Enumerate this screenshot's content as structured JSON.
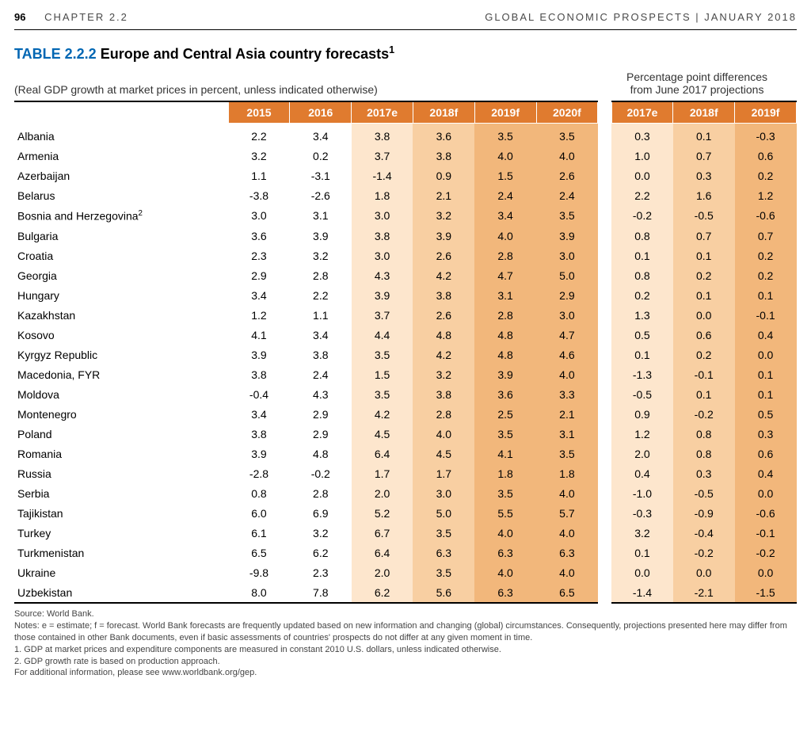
{
  "header": {
    "page_number": "96",
    "chapter": "CHAPTER 2.2",
    "doc_title": "GLOBAL ECONOMIC PROSPECTS | JANUARY 2018"
  },
  "title": {
    "prefix": "TABLE 2.2.2",
    "text": "Europe and Central Asia country forecasts",
    "sup": "1"
  },
  "subtitle": "(Real GDP growth at market prices in percent, unless indicated otherwise)",
  "diff_title_l1": "Percentage point differences",
  "diff_title_l2": "from June 2017 projections",
  "columns_main": [
    "2015",
    "2016",
    "2017e",
    "2018f",
    "2019f",
    "2020f"
  ],
  "columns_diff": [
    "2017e",
    "2018f",
    "2019f"
  ],
  "col_shade_main": [
    "",
    "",
    "shade-light",
    "shade-mid",
    "shade-dark",
    "shade-dark"
  ],
  "col_shade_diff": [
    "shade-light",
    "shade-mid",
    "shade-dark"
  ],
  "rows": [
    {
      "c": "Albania",
      "v": [
        "2.2",
        "3.4",
        "3.8",
        "3.6",
        "3.5",
        "3.5"
      ],
      "d": [
        "0.3",
        "0.1",
        "-0.3"
      ]
    },
    {
      "c": "Armenia",
      "v": [
        "3.2",
        "0.2",
        "3.7",
        "3.8",
        "4.0",
        "4.0"
      ],
      "d": [
        "1.0",
        "0.7",
        "0.6"
      ]
    },
    {
      "c": "Azerbaijan",
      "v": [
        "1.1",
        "-3.1",
        "-1.4",
        "0.9",
        "1.5",
        "2.6"
      ],
      "d": [
        "0.0",
        "0.3",
        "0.2"
      ]
    },
    {
      "c": "Belarus",
      "v": [
        "-3.8",
        "-2.6",
        "1.8",
        "2.1",
        "2.4",
        "2.4"
      ],
      "d": [
        "2.2",
        "1.6",
        "1.2"
      ]
    },
    {
      "c": "Bosnia and Herzegovina",
      "sup": "2",
      "v": [
        "3.0",
        "3.1",
        "3.0",
        "3.2",
        "3.4",
        "3.5"
      ],
      "d": [
        "-0.2",
        "-0.5",
        "-0.6"
      ]
    },
    {
      "c": "Bulgaria",
      "v": [
        "3.6",
        "3.9",
        "3.8",
        "3.9",
        "4.0",
        "3.9"
      ],
      "d": [
        "0.8",
        "0.7",
        "0.7"
      ]
    },
    {
      "c": "Croatia",
      "v": [
        "2.3",
        "3.2",
        "3.0",
        "2.6",
        "2.8",
        "3.0"
      ],
      "d": [
        "0.1",
        "0.1",
        "0.2"
      ]
    },
    {
      "c": "Georgia",
      "v": [
        "2.9",
        "2.8",
        "4.3",
        "4.2",
        "4.7",
        "5.0"
      ],
      "d": [
        "0.8",
        "0.2",
        "0.2"
      ]
    },
    {
      "c": "Hungary",
      "v": [
        "3.4",
        "2.2",
        "3.9",
        "3.8",
        "3.1",
        "2.9"
      ],
      "d": [
        "0.2",
        "0.1",
        "0.1"
      ]
    },
    {
      "c": "Kazakhstan",
      "v": [
        "1.2",
        "1.1",
        "3.7",
        "2.6",
        "2.8",
        "3.0"
      ],
      "d": [
        "1.3",
        "0.0",
        "-0.1"
      ]
    },
    {
      "c": "Kosovo",
      "v": [
        "4.1",
        "3.4",
        "4.4",
        "4.8",
        "4.8",
        "4.7"
      ],
      "d": [
        "0.5",
        "0.6",
        "0.4"
      ]
    },
    {
      "c": "Kyrgyz Republic",
      "v": [
        "3.9",
        "3.8",
        "3.5",
        "4.2",
        "4.8",
        "4.6"
      ],
      "d": [
        "0.1",
        "0.2",
        "0.0"
      ]
    },
    {
      "c": "Macedonia, FYR",
      "v": [
        "3.8",
        "2.4",
        "1.5",
        "3.2",
        "3.9",
        "4.0"
      ],
      "d": [
        "-1.3",
        "-0.1",
        "0.1"
      ]
    },
    {
      "c": "Moldova",
      "v": [
        "-0.4",
        "4.3",
        "3.5",
        "3.8",
        "3.6",
        "3.3"
      ],
      "d": [
        "-0.5",
        "0.1",
        "0.1"
      ]
    },
    {
      "c": "Montenegro",
      "v": [
        "3.4",
        "2.9",
        "4.2",
        "2.8",
        "2.5",
        "2.1"
      ],
      "d": [
        "0.9",
        "-0.2",
        "0.5"
      ]
    },
    {
      "c": "Poland",
      "v": [
        "3.8",
        "2.9",
        "4.5",
        "4.0",
        "3.5",
        "3.1"
      ],
      "d": [
        "1.2",
        "0.8",
        "0.3"
      ]
    },
    {
      "c": "Romania",
      "v": [
        "3.9",
        "4.8",
        "6.4",
        "4.5",
        "4.1",
        "3.5"
      ],
      "d": [
        "2.0",
        "0.8",
        "0.6"
      ]
    },
    {
      "c": "Russia",
      "v": [
        "-2.8",
        "-0.2",
        "1.7",
        "1.7",
        "1.8",
        "1.8"
      ],
      "d": [
        "0.4",
        "0.3",
        "0.4"
      ]
    },
    {
      "c": "Serbia",
      "v": [
        "0.8",
        "2.8",
        "2.0",
        "3.0",
        "3.5",
        "4.0"
      ],
      "d": [
        "-1.0",
        "-0.5",
        "0.0"
      ]
    },
    {
      "c": "Tajikistan",
      "v": [
        "6.0",
        "6.9",
        "5.2",
        "5.0",
        "5.5",
        "5.7"
      ],
      "d": [
        "-0.3",
        "-0.9",
        "-0.6"
      ]
    },
    {
      "c": "Turkey",
      "v": [
        "6.1",
        "3.2",
        "6.7",
        "3.5",
        "4.0",
        "4.0"
      ],
      "d": [
        "3.2",
        "-0.4",
        "-0.1"
      ]
    },
    {
      "c": "Turkmenistan",
      "v": [
        "6.5",
        "6.2",
        "6.4",
        "6.3",
        "6.3",
        "6.3"
      ],
      "d": [
        "0.1",
        "-0.2",
        "-0.2"
      ]
    },
    {
      "c": "Ukraine",
      "v": [
        "-9.8",
        "2.3",
        "2.0",
        "3.5",
        "4.0",
        "4.0"
      ],
      "d": [
        "0.0",
        "0.0",
        "0.0"
      ]
    },
    {
      "c": "Uzbekistan",
      "v": [
        "8.0",
        "7.8",
        "6.2",
        "5.6",
        "6.3",
        "6.5"
      ],
      "d": [
        "-1.4",
        "-2.1",
        "-1.5"
      ]
    }
  ],
  "footnotes": [
    "Source: World Bank.",
    "Notes: e = estimate; f = forecast. World Bank forecasts are frequently updated based on new information and changing (global) circumstances. Consequently, projections presented here may differ from those contained in other Bank documents, even if basic assessments of countries' prospects do not differ at any given moment in time.",
    "1. GDP at market prices and expenditure components are measured in constant 2010 U.S. dollars, unless indicated otherwise.",
    "2. GDP growth rate is based on production approach.",
    "For additional information, please see www.worldbank.org/gep."
  ]
}
